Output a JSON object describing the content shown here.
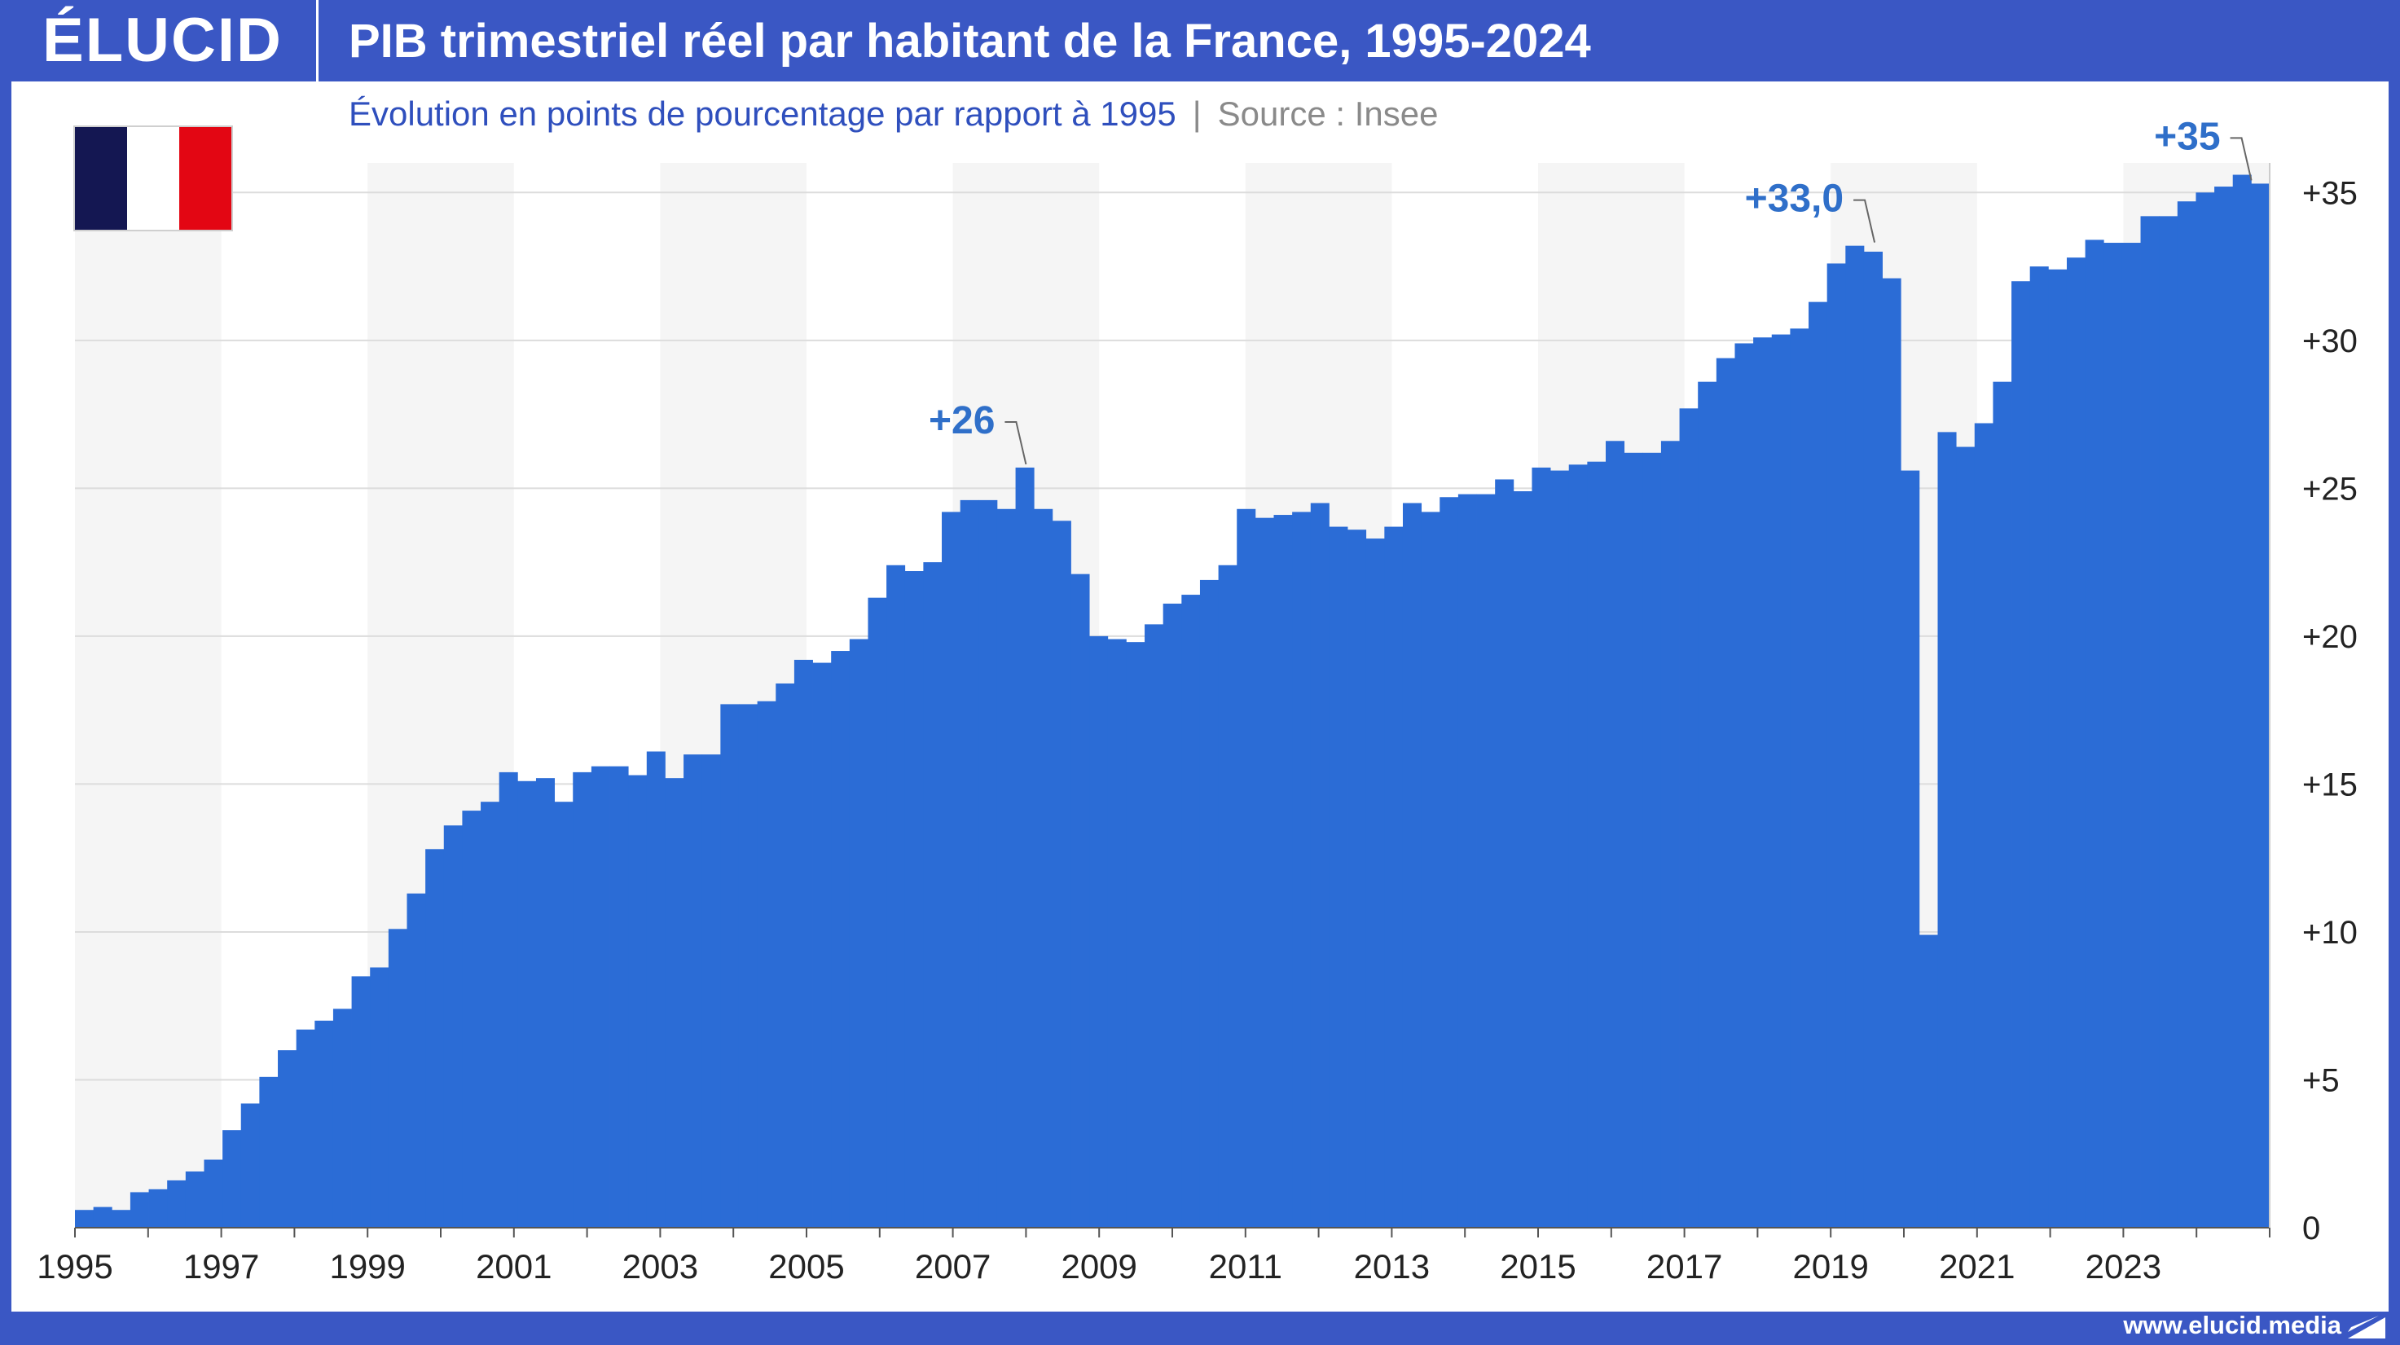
{
  "header": {
    "logo": "ÉLUCID",
    "title": "PIB trimestriel réel par habitant de la France, 1995-2024",
    "subtitle": "Évolution en points de pourcentage par rapport à 1995",
    "separator": "|",
    "source": "Source : Insee"
  },
  "flag": {
    "colors": [
      "#141752",
      "#ffffff",
      "#e30613"
    ]
  },
  "footer": {
    "url": "www.elucid.media"
  },
  "colors": {
    "bar": "#2b6cd6",
    "band": "#f5f5f5",
    "grid": "#dcdcdc",
    "annotation": "#2f6fc9",
    "frame": "#3a57c4"
  },
  "chart_data": {
    "type": "bar",
    "xlim": [
      1995,
      2025
    ],
    "ylim": [
      0,
      36
    ],
    "x_ticks": [
      "1995",
      "1997",
      "1999",
      "2001",
      "2003",
      "2005",
      "2007",
      "2009",
      "2011",
      "2013",
      "2015",
      "2017",
      "2019",
      "2021",
      "2023"
    ],
    "y_ticks": [
      "0",
      "+5",
      "+10",
      "+15",
      "+20",
      "+25",
      "+30",
      "+35"
    ],
    "grid": true,
    "alternating_bands": true,
    "annotations": [
      {
        "label": "+26",
        "x": 2008.0,
        "y": 25.7
      },
      {
        "label": "+33,0",
        "x": 2019.6,
        "y": 33.2
      },
      {
        "label": "+35",
        "x": 2024.75,
        "y": 35.3
      }
    ],
    "series": [
      {
        "values": [
          0.6,
          0.7,
          0.6,
          1.2,
          1.3,
          1.6,
          1.9,
          2.3,
          3.3,
          4.2,
          5.1,
          6.0,
          6.7,
          7.0,
          7.4,
          8.5,
          8.8,
          10.1,
          11.3,
          12.8,
          13.6,
          14.1,
          14.4,
          15.4,
          15.1,
          15.2,
          14.4,
          15.4,
          15.6,
          15.6,
          15.3,
          16.1,
          15.2,
          16.0,
          16.0,
          17.7,
          17.7,
          17.8,
          18.4,
          19.2,
          19.1,
          19.5,
          19.9,
          21.3,
          22.4,
          22.2,
          22.5,
          24.2,
          24.6,
          24.6,
          24.3,
          25.7,
          24.3,
          23.9,
          22.1,
          20.0,
          19.9,
          19.8,
          20.4,
          21.1,
          21.4,
          21.9,
          22.4,
          24.3,
          24.0,
          24.1,
          24.2,
          24.5,
          23.7,
          23.6,
          23.3,
          23.7,
          24.5,
          24.2,
          24.7,
          24.8,
          24.8,
          25.3,
          24.9,
          25.7,
          25.6,
          25.8,
          25.9,
          26.6,
          26.2,
          26.2,
          26.6,
          27.7,
          28.6,
          29.4,
          29.9,
          30.1,
          30.2,
          30.4,
          31.3,
          32.6,
          33.2,
          33.0,
          32.1,
          25.6,
          9.9,
          26.9,
          26.4,
          27.2,
          28.6,
          32.0,
          32.5,
          32.4,
          32.8,
          33.4,
          33.3,
          33.3,
          34.2,
          34.2,
          34.7,
          35.0,
          35.2,
          35.6,
          35.3
        ]
      }
    ]
  }
}
